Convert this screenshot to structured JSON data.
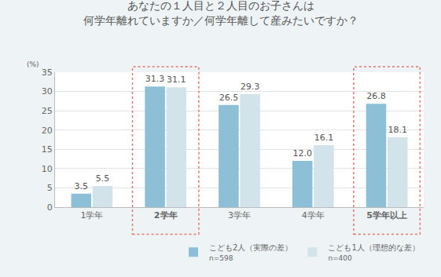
{
  "chart_data": {
    "type": "bar",
    "title": "あなたの１人目と２人目のお子さんは\n何学年離れていますか／何学年離して産みたいですか？",
    "y_label": "(%)",
    "categories": [
      "1学年",
      "2学年",
      "3学年",
      "4学年",
      "5学年以上"
    ],
    "series": [
      {
        "name": "こども2人（実際の差）",
        "n": "n=598",
        "color": "#8dc0d6",
        "values": [
          3.5,
          31.3,
          26.5,
          12.0,
          26.8
        ],
        "value_labels": [
          "3.5",
          "31.3",
          "26.5",
          "12.0",
          "26.8"
        ]
      },
      {
        "name": "こども1人（理想的な差）",
        "n": "n=400",
        "color": "#d2e4ea",
        "values": [
          5.5,
          31.1,
          29.3,
          16.1,
          18.1
        ],
        "value_labels": [
          "5.5",
          "31.1",
          "29.3",
          "16.1",
          "18.1"
        ]
      }
    ],
    "ylim": [
      0,
      35
    ],
    "yticks": [
      0,
      5,
      10,
      15,
      20,
      25,
      30,
      35
    ],
    "grid": true,
    "data_labels": true,
    "legend": "bottom right"
  }
}
